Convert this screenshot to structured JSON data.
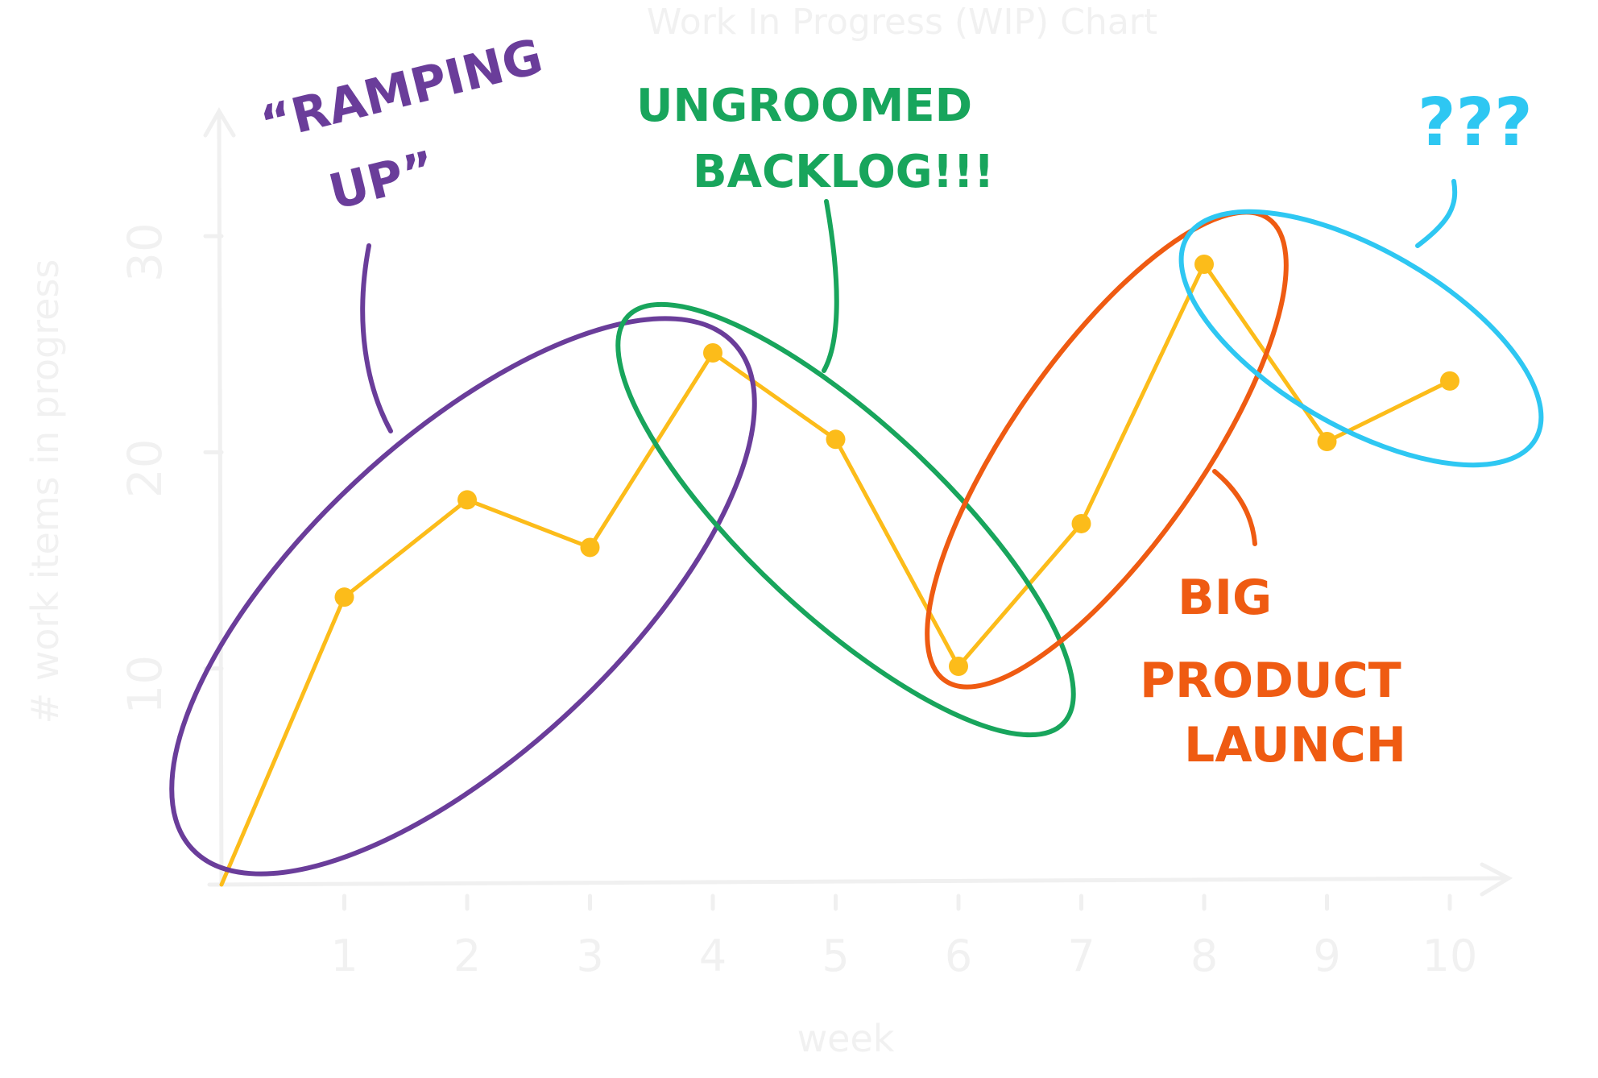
{
  "chart_data": {
    "type": "line",
    "title": "Work In Progress (WIP) Chart",
    "xlabel": "week",
    "ylabel": "# work items in progress",
    "x": [
      0,
      1,
      2,
      3,
      4,
      5,
      6,
      7,
      8,
      9,
      10
    ],
    "x_tick_labels": [
      "1",
      "2",
      "3",
      "4",
      "5",
      "6",
      "7",
      "8",
      "9",
      "10"
    ],
    "y_tick_labels": [
      "10",
      "20",
      "30"
    ],
    "y_ticks": [
      10,
      20,
      30
    ],
    "xlim": [
      0,
      10
    ],
    "ylim": [
      0,
      30
    ],
    "series": [
      {
        "values": [
          0,
          13.3,
          17.8,
          15.6,
          24.6,
          20.6,
          10.1,
          16.7,
          28.7,
          20.5,
          23.3
        ],
        "color": "#fcbc1a"
      }
    ],
    "grid": false
  },
  "annotations": [
    {
      "lines": [
        "“RAMPING",
        "UP”"
      ],
      "color": "#6a3d9a"
    },
    {
      "lines": [
        "UNGROOMED",
        "BACKLOG!!!"
      ],
      "color": "#18a55c"
    },
    {
      "lines": [
        "BIG",
        "PRODUCT",
        "LAUNCH"
      ],
      "color": "#ef5b12"
    },
    {
      "lines": [
        "???"
      ],
      "color": "#2ec7f2"
    }
  ]
}
